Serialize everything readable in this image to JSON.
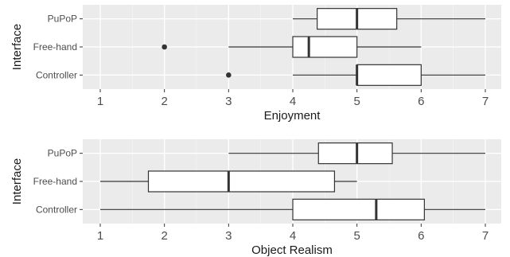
{
  "chart_data": [
    {
      "type": "boxplot",
      "xlabel": "Enjoyment",
      "ylabel": "Interface",
      "categories": [
        "PuPoP",
        "Free-hand",
        "Controller"
      ],
      "xlim": [
        0.7,
        7.3
      ],
      "xticks": [
        "1",
        "2",
        "3",
        "4",
        "5",
        "6",
        "7"
      ],
      "boxes": [
        {
          "category": "PuPoP",
          "whisker_low": 4,
          "q1": 4.38,
          "median": 5,
          "q3": 5.62,
          "whisker_high": 7,
          "outliers": []
        },
        {
          "category": "Free-hand",
          "whisker_low": 3,
          "q1": 4,
          "median": 4.25,
          "q3": 5,
          "whisker_high": 6,
          "outliers": [
            2
          ]
        },
        {
          "category": "Controller",
          "whisker_low": 4,
          "q1": 5,
          "median": 5,
          "q3": 6,
          "whisker_high": 7,
          "outliers": [
            3
          ]
        }
      ],
      "grid": true,
      "background": "#ebebeb",
      "box_fill": "#ffffff",
      "line_color": "#333333"
    },
    {
      "type": "boxplot",
      "xlabel": "Object Realism",
      "ylabel": "Interface",
      "categories": [
        "PuPoP",
        "Free-hand",
        "Controller"
      ],
      "xlim": [
        0.7,
        7.3
      ],
      "xticks": [
        "1",
        "2",
        "3",
        "4",
        "5",
        "6",
        "7"
      ],
      "boxes": [
        {
          "category": "PuPoP",
          "whisker_low": 3,
          "q1": 4.4,
          "median": 5,
          "q3": 5.55,
          "whisker_high": 7,
          "outliers": []
        },
        {
          "category": "Free-hand",
          "whisker_low": 1,
          "q1": 1.75,
          "median": 3,
          "q3": 4.65,
          "whisker_high": 5,
          "outliers": []
        },
        {
          "category": "Controller",
          "whisker_low": 1,
          "q1": 4,
          "median": 5.3,
          "q3": 6.05,
          "whisker_high": 7,
          "outliers": []
        }
      ],
      "grid": true,
      "background": "#ebebeb",
      "box_fill": "#ffffff",
      "line_color": "#333333"
    }
  ]
}
